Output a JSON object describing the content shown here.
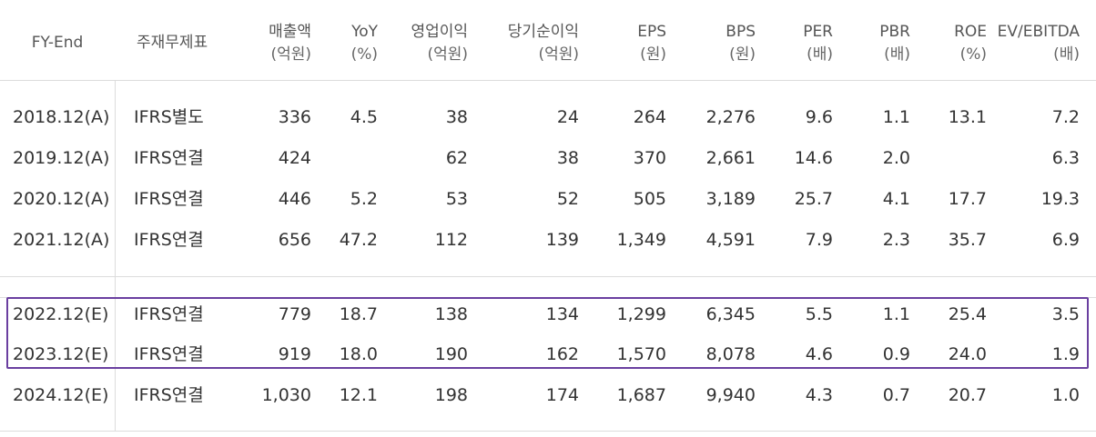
{
  "header": {
    "fy_end": "FY-End",
    "statement": "주재무제표",
    "sales": "매출액",
    "sales_unit": "(억원)",
    "yoy": "YoY",
    "yoy_unit": "(%)",
    "op_income": "영업이익",
    "op_income_unit": "(억원)",
    "net_income": "당기순이익",
    "net_income_unit": "(억원)",
    "eps": "EPS",
    "eps_unit": "(원)",
    "bps": "BPS",
    "bps_unit": "(원)",
    "per": "PER",
    "per_unit": "(배)",
    "pbr": "PBR",
    "pbr_unit": "(배)",
    "roe": "ROE",
    "roe_unit": "(%)",
    "ev_ebitda": "EV/EBITDA",
    "ev_ebitda_unit": "(배)"
  },
  "rows": [
    {
      "fy": "2018.12(A)",
      "statement": "IFRS별도",
      "sales": "336",
      "yoy": "4.5",
      "op": "38",
      "net": "24",
      "eps": "264",
      "bps": "2,276",
      "per": "9.6",
      "pbr": "1.1",
      "roe": "13.1",
      "ev": "7.2"
    },
    {
      "fy": "2019.12(A)",
      "statement": "IFRS연결",
      "sales": "424",
      "yoy": "",
      "op": "62",
      "net": "38",
      "eps": "370",
      "bps": "2,661",
      "per": "14.6",
      "pbr": "2.0",
      "roe": "",
      "ev": "6.3"
    },
    {
      "fy": "2020.12(A)",
      "statement": "IFRS연결",
      "sales": "446",
      "yoy": "5.2",
      "op": "53",
      "net": "52",
      "eps": "505",
      "bps": "3,189",
      "per": "25.7",
      "pbr": "4.1",
      "roe": "17.7",
      "ev": "19.3"
    },
    {
      "fy": "2021.12(A)",
      "statement": "IFRS연결",
      "sales": "656",
      "yoy": "47.2",
      "op": "112",
      "net": "139",
      "eps": "1,349",
      "bps": "4,591",
      "per": "7.9",
      "pbr": "2.3",
      "roe": "35.7",
      "ev": "6.9"
    },
    {
      "fy": "2022.12(E)",
      "statement": "IFRS연결",
      "sales": "779",
      "yoy": "18.7",
      "op": "138",
      "net": "134",
      "eps": "1,299",
      "bps": "6,345",
      "per": "5.5",
      "pbr": "1.1",
      "roe": "25.4",
      "ev": "3.5"
    },
    {
      "fy": "2023.12(E)",
      "statement": "IFRS연결",
      "sales": "919",
      "yoy": "18.0",
      "op": "190",
      "net": "162",
      "eps": "1,570",
      "bps": "8,078",
      "per": "4.6",
      "pbr": "0.9",
      "roe": "24.0",
      "ev": "1.9"
    },
    {
      "fy": "2024.12(E)",
      "statement": "IFRS연결",
      "sales": "1,030",
      "yoy": "12.1",
      "op": "198",
      "net": "174",
      "eps": "1,687",
      "bps": "9,940",
      "per": "4.3",
      "pbr": "0.7",
      "roe": "20.7",
      "ev": "1.0"
    }
  ],
  "highlight_color": "#6a3fa0"
}
